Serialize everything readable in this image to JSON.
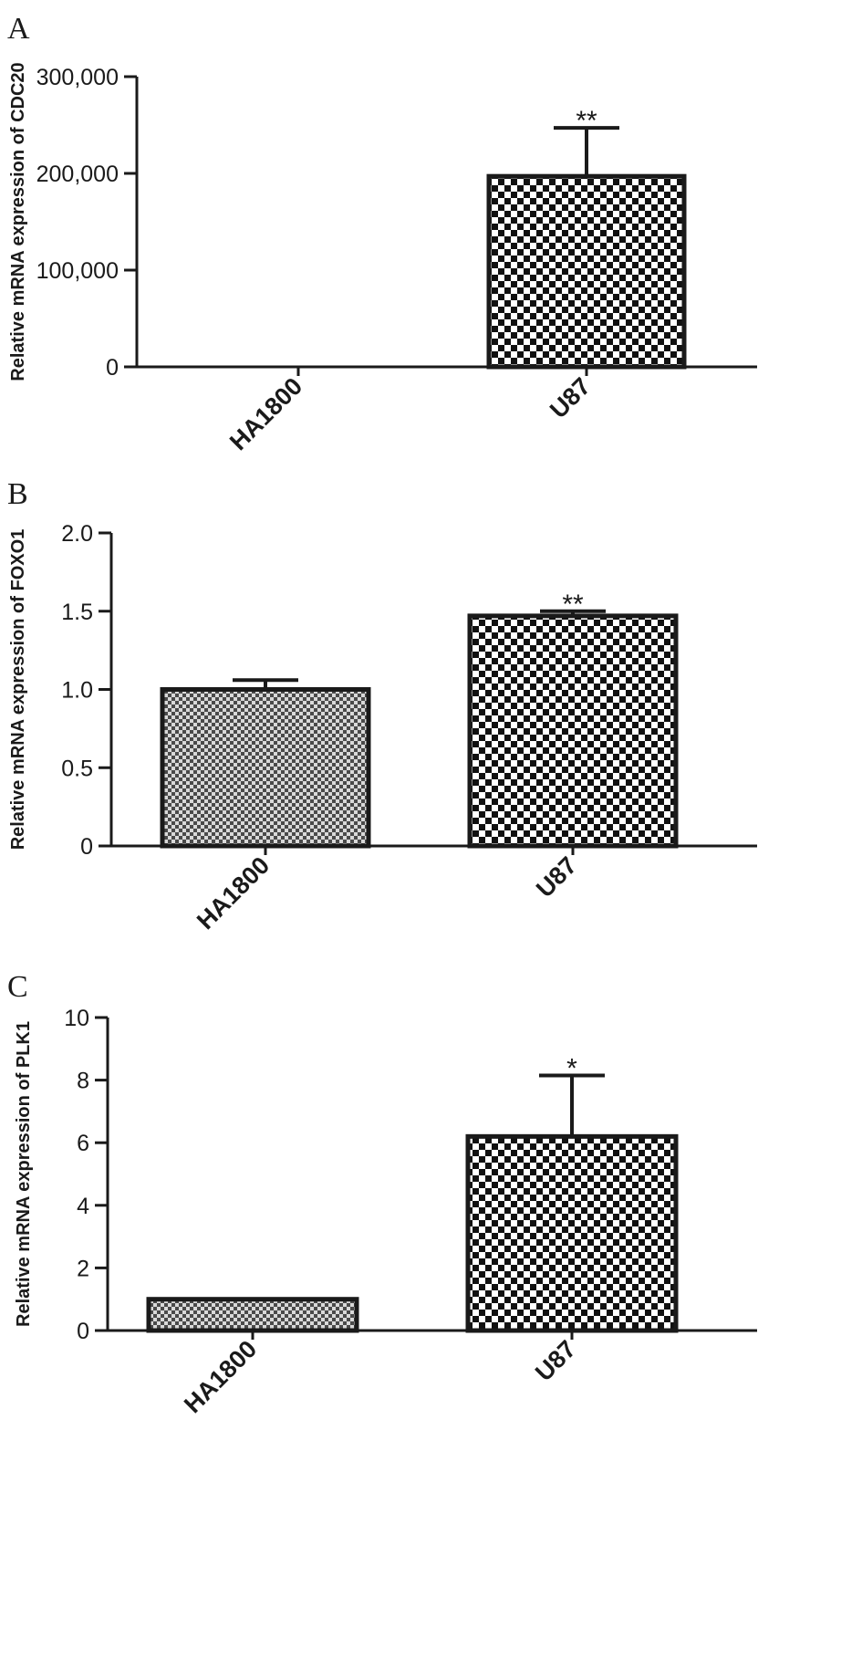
{
  "chart_data": [
    {
      "panel": "A",
      "type": "bar",
      "categories": [
        "HA1800",
        "U87"
      ],
      "values": [
        0,
        197000
      ],
      "errors": [
        0,
        50000
      ],
      "significance": [
        "",
        "**"
      ],
      "patterns": [
        "checker-fine",
        "checker-coarse"
      ],
      "ylabel": "Relative mRNA expression of CDC20",
      "ylim": [
        0,
        300000
      ],
      "yticks": [
        0,
        100000,
        200000,
        300000
      ],
      "ytick_labels": [
        "0",
        "100,000",
        "200,000",
        "300,000"
      ],
      "grid": false
    },
    {
      "panel": "B",
      "type": "bar",
      "categories": [
        "HA1800",
        "U87"
      ],
      "values": [
        1.0,
        1.47
      ],
      "errors": [
        0.06,
        0.03
      ],
      "significance": [
        "",
        "**"
      ],
      "patterns": [
        "checker-fine",
        "checker-coarse"
      ],
      "ylabel": "Relative mRNA expression of  FOXO1",
      "ylim": [
        0,
        2.0
      ],
      "yticks": [
        0,
        0.5,
        1.0,
        1.5,
        2.0
      ],
      "ytick_labels": [
        "0",
        "0.5",
        "1.0",
        "1.5",
        "2.0"
      ],
      "grid": false
    },
    {
      "panel": "C",
      "type": "bar",
      "categories": [
        "HA1800",
        "U87"
      ],
      "values": [
        1.0,
        6.2
      ],
      "errors": [
        0,
        1.95
      ],
      "significance": [
        "",
        "*"
      ],
      "patterns": [
        "checker-fine",
        "checker-coarse"
      ],
      "ylabel": "Relative mRNA expression of PLK1",
      "ylim": [
        0,
        10
      ],
      "yticks": [
        0,
        2,
        4,
        6,
        8,
        10
      ],
      "ytick_labels": [
        "0",
        "2",
        "4",
        "6",
        "8",
        "10"
      ],
      "grid": false
    }
  ],
  "colors": {
    "ink": "#1a1a1a",
    "background": "#ffffff"
  }
}
